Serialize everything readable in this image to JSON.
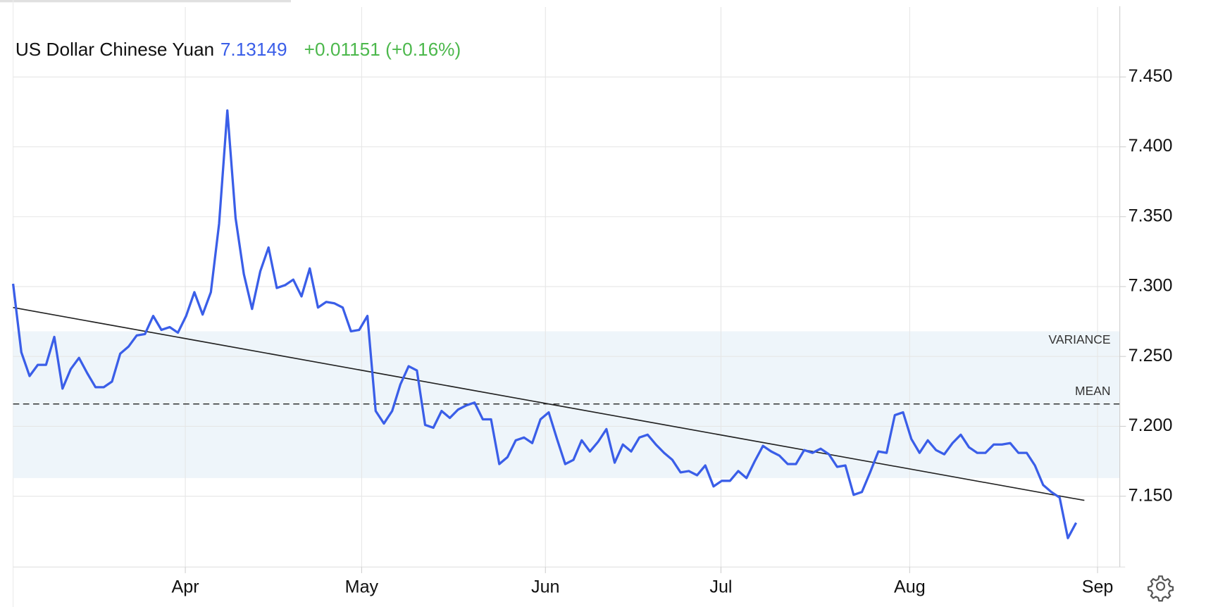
{
  "chart_data": {
    "type": "line",
    "title": "US Dollar Chinese Yuan",
    "last_value": "7.13149",
    "change": "+0.01151 (+0.16%)",
    "series": [
      {
        "name": "US Dollar Chinese Yuan",
        "color": "#3a5ee8",
        "values": [
          7.302,
          7.253,
          7.236,
          7.244,
          7.244,
          7.264,
          7.227,
          7.241,
          7.249,
          7.238,
          7.228,
          7.228,
          7.232,
          7.252,
          7.257,
          7.265,
          7.266,
          7.279,
          7.269,
          7.271,
          7.267,
          7.279,
          7.296,
          7.28,
          7.296,
          7.345,
          7.426,
          7.349,
          7.309,
          7.284,
          7.311,
          7.328,
          7.299,
          7.301,
          7.305,
          7.293,
          7.313,
          7.285,
          7.289,
          7.288,
          7.285,
          7.268,
          7.269,
          7.279,
          7.211,
          7.202,
          7.211,
          7.23,
          7.243,
          7.24,
          7.201,
          7.199,
          7.211,
          7.206,
          7.212,
          7.215,
          7.217,
          7.205,
          7.205,
          7.173,
          7.178,
          7.19,
          7.192,
          7.188,
          7.205,
          7.21,
          7.191,
          7.173,
          7.176,
          7.19,
          7.182,
          7.189,
          7.198,
          7.174,
          7.187,
          7.182,
          7.192,
          7.194,
          7.187,
          7.181,
          7.176,
          7.167,
          7.168,
          7.165,
          7.172,
          7.157,
          7.161,
          7.161,
          7.168,
          7.163,
          7.175,
          7.186,
          7.182,
          7.179,
          7.173,
          7.173,
          7.183,
          7.181,
          7.184,
          7.18,
          7.171,
          7.172,
          7.151,
          7.153,
          7.167,
          7.182,
          7.181,
          7.208,
          7.21,
          7.191,
          7.181,
          7.19,
          7.183,
          7.18,
          7.188,
          7.194,
          7.185,
          7.181,
          7.181,
          7.187,
          7.187,
          7.188,
          7.181,
          7.181,
          7.172,
          7.158,
          7.153,
          7.149,
          7.12,
          7.131
        ]
      }
    ],
    "trendline": {
      "x": [
        0,
        130
      ],
      "values": [
        7.285,
        7.147
      ],
      "color": "#222222"
    },
    "mean": {
      "label": "MEAN",
      "value": 7.216
    },
    "variance": {
      "label": "VARIANCE",
      "range": [
        7.163,
        7.268
      ],
      "color": "#eef5fa"
    },
    "xlim": [
      0,
      134.3
    ],
    "xticks": [
      {
        "value": 20.9,
        "label": "Apr"
      },
      {
        "value": 42.3,
        "label": "May"
      },
      {
        "value": 64.6,
        "label": "Jun"
      },
      {
        "value": 85.9,
        "label": "Jul"
      },
      {
        "value": 108.8,
        "label": "Aug"
      },
      {
        "value": 131.6,
        "label": "Sep"
      }
    ],
    "ylim": [
      7.1,
      7.5
    ],
    "yticks": [
      {
        "value": 7.15,
        "label": "7.150"
      },
      {
        "value": 7.2,
        "label": "7.200"
      },
      {
        "value": 7.25,
        "label": "7.250"
      },
      {
        "value": 7.3,
        "label": "7.300"
      },
      {
        "value": 7.35,
        "label": "7.350"
      },
      {
        "value": 7.4,
        "label": "7.400"
      },
      {
        "value": 7.45,
        "label": "7.450"
      }
    ],
    "grid": true
  }
}
